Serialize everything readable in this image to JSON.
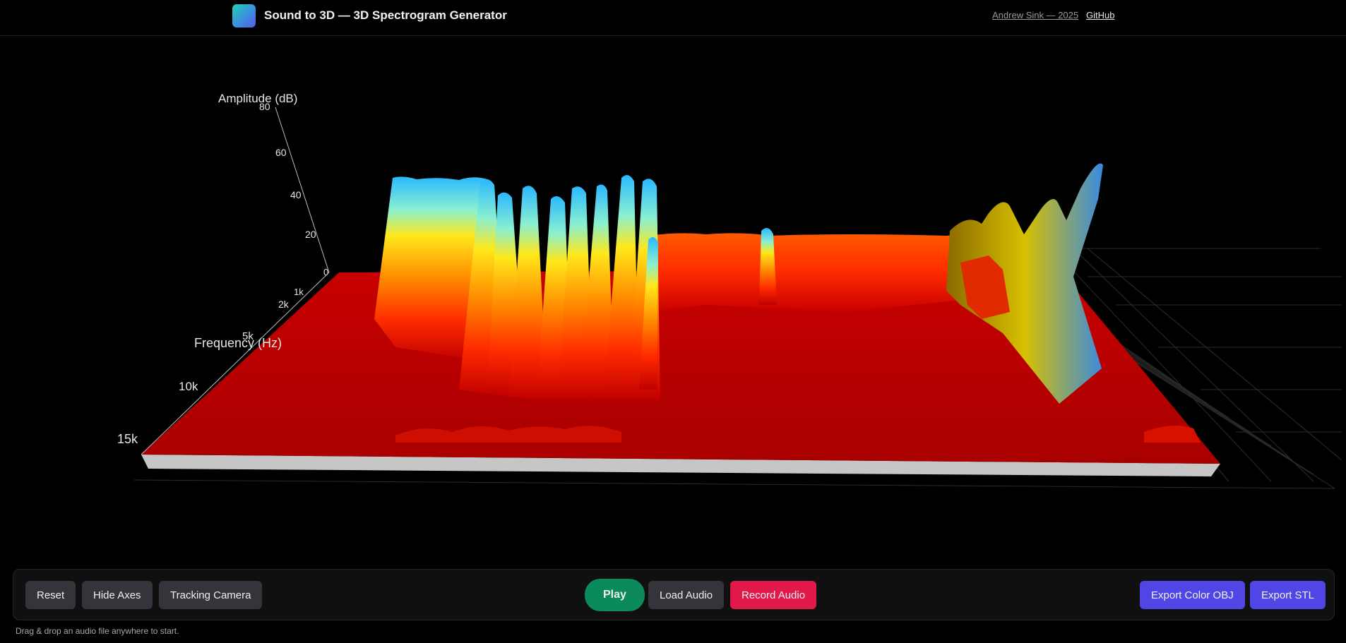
{
  "header": {
    "title": "Sound to 3D — 3D Spectrogram Generator",
    "author": "Andrew Sink — 2025",
    "github": "GitHub"
  },
  "scene": {
    "amplitude_axis": {
      "label": "Amplitude (dB)",
      "ticks": [
        "80",
        "60",
        "40",
        "20",
        "0"
      ]
    },
    "frequency_axis": {
      "label": "Frequency (Hz)",
      "ticks": [
        "1k",
        "2k",
        "5k",
        "10k",
        "15k"
      ]
    },
    "colors": {
      "base": "#b00000",
      "mid": "#ff3000",
      "high": "#ffd000",
      "peak": "#30b0ff",
      "slab_side": "#c8c8c8",
      "grid": "#2a2a2a"
    }
  },
  "controls": {
    "reset": "Reset",
    "hide_axes": "Hide Axes",
    "tracking_camera": "Tracking Camera",
    "play": "Play",
    "load_audio": "Load Audio",
    "record_audio": "Record Audio",
    "export_obj": "Export Color OBJ",
    "export_stl": "Export STL"
  },
  "hint": "Drag & drop an audio file anywhere to start."
}
